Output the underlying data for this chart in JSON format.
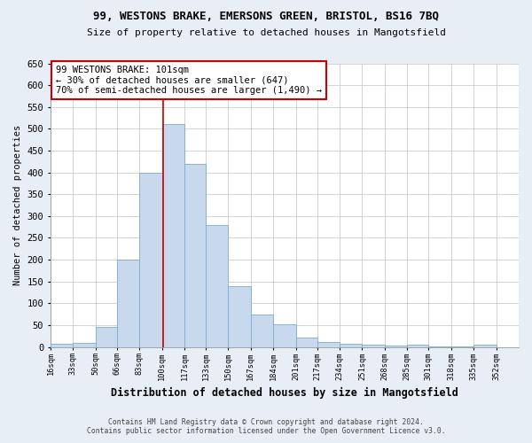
{
  "title1": "99, WESTONS BRAKE, EMERSONS GREEN, BRISTOL, BS16 7BQ",
  "title2": "Size of property relative to detached houses in Mangotsfield",
  "xlabel": "Distribution of detached houses by size in Mangotsfield",
  "ylabel": "Number of detached properties",
  "bar_color": "#c8d8ed",
  "bar_edge_color": "#7aadcc",
  "bar_left_edges": [
    16,
    33,
    50,
    66,
    83,
    100,
    117,
    133,
    150,
    167,
    184,
    201,
    217,
    234,
    251,
    268,
    285,
    301,
    318,
    335
  ],
  "bar_widths": [
    17,
    17,
    16,
    17,
    17,
    17,
    16,
    17,
    17,
    17,
    17,
    16,
    17,
    17,
    17,
    17,
    16,
    17,
    17,
    17
  ],
  "bar_heights": [
    8,
    10,
    45,
    200,
    400,
    510,
    420,
    280,
    140,
    75,
    52,
    22,
    12,
    8,
    5,
    3,
    5,
    1,
    1,
    5
  ],
  "tick_labels": [
    "16sqm",
    "33sqm",
    "50sqm",
    "66sqm",
    "83sqm",
    "100sqm",
    "117sqm",
    "133sqm",
    "150sqm",
    "167sqm",
    "184sqm",
    "201sqm",
    "217sqm",
    "234sqm",
    "251sqm",
    "268sqm",
    "285sqm",
    "301sqm",
    "318sqm",
    "335sqm",
    "352sqm"
  ],
  "tick_positions": [
    16,
    33,
    50,
    66,
    83,
    100,
    117,
    133,
    150,
    167,
    184,
    201,
    217,
    234,
    251,
    268,
    285,
    301,
    318,
    335,
    352
  ],
  "ylim": [
    0,
    650
  ],
  "yticks": [
    0,
    50,
    100,
    150,
    200,
    250,
    300,
    350,
    400,
    450,
    500,
    550,
    600,
    650
  ],
  "marker_x": 101,
  "annotation_line1": "99 WESTONS BRAKE: 101sqm",
  "annotation_line2": "← 30% of detached houses are smaller (647)",
  "annotation_line3": "70% of semi-detached houses are larger (1,490) →",
  "vline_color": "#cc0000",
  "box_edge_color": "#cc0000",
  "footnote1": "Contains HM Land Registry data © Crown copyright and database right 2024.",
  "footnote2": "Contains public sector information licensed under the Open Government Licence v3.0.",
  "bg_color": "#e8eef5",
  "plot_bg_color": "#ffffff",
  "grid_color": "#cccccc",
  "xlim_left": 16,
  "xlim_right": 369
}
